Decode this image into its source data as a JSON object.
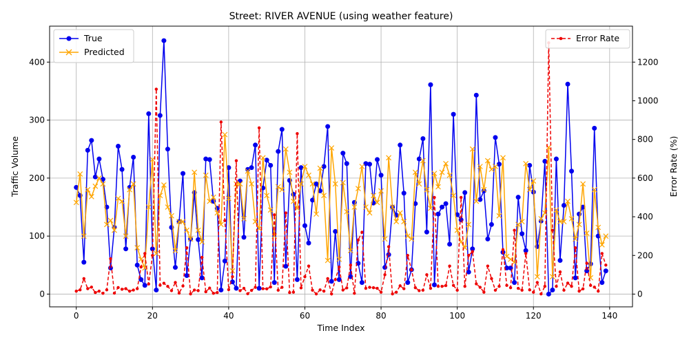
{
  "chart_data": {
    "type": "line",
    "title": "Street: RIVER AVENUE (using weather feature)",
    "xlabel": "Time Index",
    "ylabel": "Traffic Volume",
    "y2label": "Error Rate (%)",
    "xlim": [
      -7,
      146
    ],
    "ylim": [
      -22,
      462
    ],
    "y2lim": [
      -66,
      1386
    ],
    "x_ticks": [
      0,
      20,
      40,
      60,
      80,
      100,
      120,
      140
    ],
    "y_ticks": [
      0,
      100,
      200,
      300,
      400
    ],
    "y2_ticks": [
      0,
      200,
      400,
      600,
      800,
      1000,
      1200
    ],
    "grid": true,
    "legend_left": "upper-left",
    "legend_right": "upper-right",
    "colors": {
      "true": "#0000ee",
      "predicted": "#ffa500",
      "error": "#ee0000"
    },
    "series": [
      {
        "name": "True",
        "axis": "left",
        "style": "line-circle",
        "values": [
          184,
          170,
          55,
          248,
          265,
          202,
          233,
          198,
          150,
          45,
          115,
          255,
          215,
          78,
          184,
          236,
          50,
          25,
          15,
          311,
          78,
          7,
          308,
          437,
          250,
          115,
          46,
          125,
          208,
          32,
          95,
          175,
          94,
          28,
          233,
          232,
          160,
          148,
          7,
          57,
          218,
          21,
          10,
          195,
          98,
          215,
          218,
          257,
          10,
          183,
          231,
          222,
          20,
          246,
          284,
          48,
          196,
          172,
          25,
          218,
          118,
          88,
          162,
          190,
          178,
          220,
          289,
          22,
          108,
          25,
          243,
          225,
          30,
          158,
          53,
          20,
          225,
          224,
          157,
          232,
          205,
          46,
          68,
          150,
          136,
          257,
          174,
          20,
          42,
          156,
          233,
          268,
          107,
          361,
          16,
          138,
          150,
          156,
          86,
          310,
          137,
          128,
          175,
          38,
          78,
          343,
          163,
          178,
          95,
          120,
          270,
          224,
          72,
          45,
          45,
          20,
          167,
          104,
          75,
          222,
          176,
          82,
          126,
          229,
          0,
          7,
          233,
          58,
          153,
          362,
          212,
          28,
          138,
          150,
          40,
          52,
          286,
          100,
          20,
          40
        ]
      },
      {
        "name": "Predicted",
        "axis": "left",
        "style": "line-x",
        "values": [
          158,
          207,
          100,
          180,
          168,
          186,
          200,
          190,
          120,
          127,
          110,
          165,
          160,
          100,
          180,
          190,
          80,
          60,
          45,
          150,
          232,
          70,
          170,
          188,
          150,
          135,
          75,
          125,
          125,
          110,
          95,
          210,
          110,
          90,
          205,
          160,
          167,
          140,
          120,
          275,
          165,
          40,
          190,
          190,
          130,
          212,
          190,
          125,
          113,
          235,
          170,
          145,
          100,
          185,
          180,
          250,
          210,
          160,
          148,
          190,
          220,
          205,
          190,
          138,
          217,
          170,
          58,
          252,
          190,
          60,
          192,
          142,
          75,
          150,
          182,
          220,
          150,
          140,
          170,
          158,
          178,
          95,
          235,
          150,
          125,
          140,
          125,
          100,
          95,
          210,
          190,
          230,
          180,
          148,
          208,
          185,
          210,
          225,
          205,
          170,
          110,
          90,
          80,
          120,
          250,
          160,
          220,
          180,
          230,
          215,
          220,
          135,
          235,
          65,
          60,
          55,
          120,
          125,
          225,
          180,
          195,
          30,
          130,
          140,
          253,
          30,
          145,
          125,
          125,
          160,
          130,
          95,
          120,
          190,
          105,
          28,
          180,
          115,
          85,
          100
        ]
      },
      {
        "name": "Error Rate",
        "axis": "right",
        "style": "dashed-dot",
        "values": [
          15,
          22,
          80,
          28,
          36,
          8,
          15,
          4,
          22,
          183,
          5,
          34,
          25,
          28,
          15,
          21,
          28,
          140,
          210,
          52,
          200,
          1060,
          46,
          56,
          40,
          18,
          60,
          5,
          42,
          240,
          1,
          21,
          18,
          190,
          12,
          31,
          4,
          8,
          890,
          380,
          23,
          90,
          690,
          18,
          30,
          2,
          19,
          35,
          860,
          28,
          27,
          37,
          410,
          20,
          35,
          420,
          8,
          10,
          830,
          32,
          90,
          145,
          20,
          1,
          22,
          15,
          80,
          1,
          75,
          140,
          21,
          32,
          150,
          4,
          280,
          320,
          30,
          35,
          33,
          30,
          10,
          100,
          245,
          1,
          10,
          43,
          28,
          200,
          125,
          33,
          18,
          20,
          100,
          30,
          500,
          40,
          40,
          44,
          145,
          45,
          20,
          500,
          40,
          200,
          220,
          53,
          35,
          10,
          145,
          80,
          20,
          40,
          230,
          45,
          33,
          330,
          30,
          20,
          210,
          22,
          10,
          60,
          1,
          40,
          1300,
          330,
          40,
          115,
          20,
          57,
          40,
          240,
          15,
          27,
          160,
          45,
          36,
          15,
          210,
          150
        ]
      }
    ]
  }
}
